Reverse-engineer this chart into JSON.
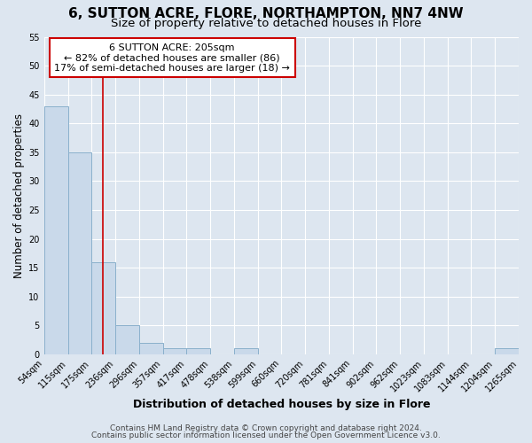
{
  "title": "6, SUTTON ACRE, FLORE, NORTHAMPTON, NN7 4NW",
  "subtitle": "Size of property relative to detached houses in Flore",
  "xlabel": "Distribution of detached houses by size in Flore",
  "ylabel": "Number of detached properties",
  "bin_edges": [
    54,
    115,
    175,
    236,
    296,
    357,
    417,
    478,
    538,
    599,
    660,
    720,
    781,
    841,
    902,
    962,
    1023,
    1083,
    1144,
    1204,
    1265
  ],
  "bin_labels": [
    "54sqm",
    "115sqm",
    "175sqm",
    "236sqm",
    "296sqm",
    "357sqm",
    "417sqm",
    "478sqm",
    "538sqm",
    "599sqm",
    "660sqm",
    "720sqm",
    "781sqm",
    "841sqm",
    "902sqm",
    "962sqm",
    "1023sqm",
    "1083sqm",
    "1144sqm",
    "1204sqm",
    "1265sqm"
  ],
  "counts": [
    43,
    35,
    16,
    5,
    2,
    1,
    1,
    0,
    1,
    0,
    0,
    0,
    0,
    0,
    0,
    0,
    0,
    0,
    0,
    1
  ],
  "bar_color": "#c9d9ea",
  "bar_edge_color": "#8ab0cc",
  "property_value": 205,
  "vline_color": "#cc0000",
  "ylim": [
    0,
    55
  ],
  "yticks": [
    0,
    5,
    10,
    15,
    20,
    25,
    30,
    35,
    40,
    45,
    50,
    55
  ],
  "annotation_title": "6 SUTTON ACRE: 205sqm",
  "annotation_line1": "← 82% of detached houses are smaller (86)",
  "annotation_line2": "17% of semi-detached houses are larger (18) →",
  "annotation_box_color": "#ffffff",
  "annotation_box_edge": "#cc0000",
  "footer1": "Contains HM Land Registry data © Crown copyright and database right 2024.",
  "footer2": "Contains public sector information licensed under the Open Government Licence v3.0.",
  "background_color": "#dde6f0",
  "plot_background": "#dde6f0",
  "grid_color": "#ffffff",
  "title_fontsize": 11,
  "subtitle_fontsize": 9.5,
  "xlabel_fontsize": 9,
  "ylabel_fontsize": 8.5,
  "tick_fontsize": 7,
  "annotation_fontsize": 8,
  "footer_fontsize": 6.5
}
